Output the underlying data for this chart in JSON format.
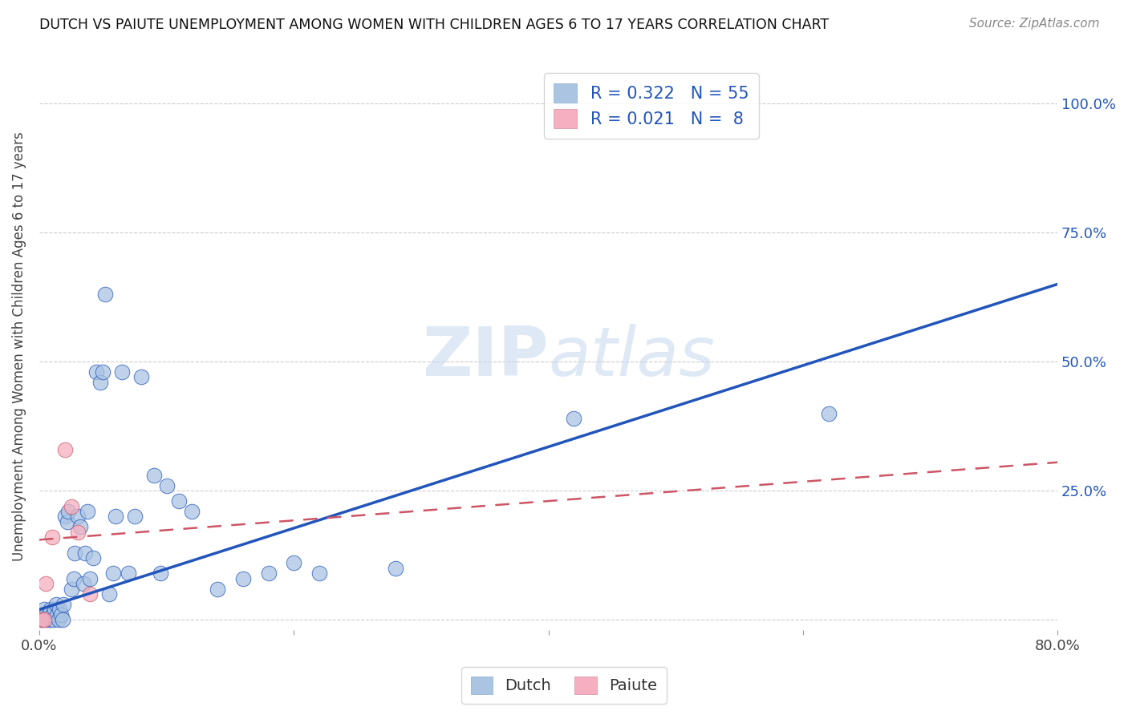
{
  "title": "DUTCH VS PAIUTE UNEMPLOYMENT AMONG WOMEN WITH CHILDREN AGES 6 TO 17 YEARS CORRELATION CHART",
  "source": "Source: ZipAtlas.com",
  "ylabel": "Unemployment Among Women with Children Ages 6 to 17 years",
  "xlim": [
    0.0,
    0.8
  ],
  "ylim": [
    -0.02,
    1.08
  ],
  "xticks": [
    0.0,
    0.2,
    0.4,
    0.6,
    0.8
  ],
  "xticklabels": [
    "0.0%",
    "",
    "",
    "",
    "80.0%"
  ],
  "ytick_positions": [
    0.0,
    0.25,
    0.5,
    0.75,
    1.0
  ],
  "yticklabels_right": [
    "",
    "25.0%",
    "50.0%",
    "75.0%",
    "100.0%"
  ],
  "dutch_R": 0.322,
  "dutch_N": 55,
  "paiute_R": 0.021,
  "paiute_N": 8,
  "dutch_color": "#aac4e2",
  "paiute_color": "#f5afc0",
  "dutch_line_color": "#2255bb",
  "paiute_line_color": "#cc5566",
  "watermark_color": "#c5d8ed",
  "dutch_x": [
    0.002,
    0.003,
    0.004,
    0.005,
    0.006,
    0.007,
    0.008,
    0.009,
    0.01,
    0.011,
    0.012,
    0.013,
    0.014,
    0.015,
    0.016,
    0.017,
    0.018,
    0.019,
    0.02,
    0.022,
    0.023,
    0.025,
    0.027,
    0.028,
    0.03,
    0.032,
    0.035,
    0.036,
    0.038,
    0.04,
    0.042,
    0.045,
    0.048,
    0.05,
    0.052,
    0.055,
    0.058,
    0.06,
    0.065,
    0.07,
    0.075,
    0.08,
    0.09,
    0.095,
    0.1,
    0.11,
    0.12,
    0.14,
    0.16,
    0.18,
    0.2,
    0.22,
    0.28,
    0.42,
    0.62
  ],
  "dutch_y": [
    0.0,
    0.01,
    0.02,
    0.01,
    0.0,
    0.01,
    0.0,
    0.02,
    0.01,
    0.0,
    0.02,
    0.03,
    0.01,
    0.0,
    0.02,
    0.01,
    0.0,
    0.03,
    0.2,
    0.19,
    0.21,
    0.06,
    0.08,
    0.13,
    0.2,
    0.18,
    0.07,
    0.13,
    0.21,
    0.08,
    0.12,
    0.48,
    0.46,
    0.48,
    0.63,
    0.05,
    0.09,
    0.2,
    0.48,
    0.09,
    0.2,
    0.47,
    0.28,
    0.09,
    0.26,
    0.23,
    0.21,
    0.06,
    0.08,
    0.09,
    0.11,
    0.09,
    0.1,
    0.39,
    0.4
  ],
  "dutch_line_x0": 0.0,
  "dutch_line_y0": 0.02,
  "dutch_line_x1": 0.8,
  "dutch_line_y1": 0.65,
  "paiute_x": [
    0.002,
    0.004,
    0.005,
    0.01,
    0.02,
    0.025,
    0.03,
    0.04
  ],
  "paiute_y": [
    0.0,
    0.0,
    0.07,
    0.16,
    0.33,
    0.22,
    0.17,
    0.05
  ],
  "paiute_line_x0": 0.0,
  "paiute_line_y0": 0.155,
  "paiute_line_x1": 0.8,
  "paiute_line_y1": 0.305
}
